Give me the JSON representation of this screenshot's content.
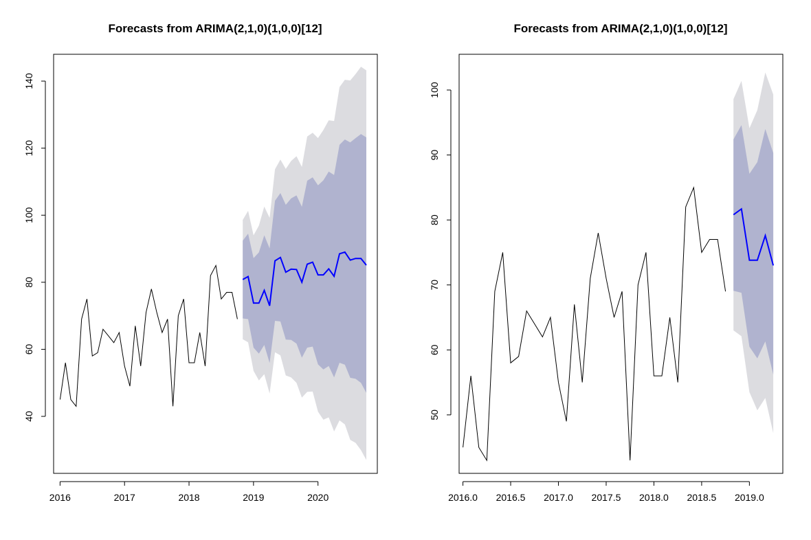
{
  "chart_data": [
    {
      "type": "line",
      "title": "Forecasts from ARIMA(2,1,0)(1,0,0)[12]",
      "xlabel": "",
      "ylabel": "",
      "xlim": [
        2015.9,
        2020.92
      ],
      "ylim": [
        23.0,
        148.0
      ],
      "x_ticks": [
        {
          "value": 2016,
          "label": "2016"
        },
        {
          "value": 2017,
          "label": "2017"
        },
        {
          "value": 2018,
          "label": "2018"
        },
        {
          "value": 2019,
          "label": "2019"
        },
        {
          "value": 2020,
          "label": "2020"
        }
      ],
      "y_ticks": [
        {
          "value": 40,
          "label": "40"
        },
        {
          "value": 60,
          "label": "60"
        },
        {
          "value": 80,
          "label": "80"
        },
        {
          "value": 100,
          "label": "100"
        },
        {
          "value": 120,
          "label": "120"
        },
        {
          "value": 140,
          "label": "140"
        }
      ],
      "grid": false,
      "colors": {
        "observed": "#000000",
        "forecast": "#0000ff",
        "band_80": "#b0b3cf",
        "band_95": "#dcdce0"
      },
      "observed": {
        "x": [
          2016.0,
          2016.0833,
          2016.1667,
          2016.25,
          2016.3333,
          2016.4167,
          2016.5,
          2016.5833,
          2016.6667,
          2016.75,
          2016.8333,
          2016.9167,
          2017.0,
          2017.0833,
          2017.1667,
          2017.25,
          2017.3333,
          2017.4167,
          2017.5,
          2017.5833,
          2017.6667,
          2017.75,
          2017.8333,
          2017.9167,
          2018.0,
          2018.0833,
          2018.1667,
          2018.25,
          2018.3333,
          2018.4167,
          2018.5,
          2018.5833,
          2018.6667,
          2018.75
        ],
        "y": [
          45,
          56,
          45,
          43,
          69,
          75,
          58,
          59,
          66,
          64,
          62,
          65,
          55,
          49,
          67,
          55,
          71,
          78,
          71,
          65,
          69,
          43,
          70,
          75,
          56,
          56,
          65,
          55,
          82,
          85,
          75,
          77,
          77,
          69
        ]
      },
      "forecast": {
        "x": [
          2018.8333,
          2018.9167,
          2019.0,
          2019.0833,
          2019.1667,
          2019.25,
          2019.3333,
          2019.4167,
          2019.5,
          2019.5833,
          2019.6667,
          2019.75,
          2019.8333,
          2019.9167,
          2020.0,
          2020.0833,
          2020.1667,
          2020.25,
          2020.3333,
          2020.4167,
          2020.5,
          2020.5833,
          2020.6667,
          2020.75
        ],
        "mean": [
          80.8,
          81.7,
          73.8,
          73.8,
          77.6,
          73.0,
          86.4,
          87.4,
          83.0,
          83.9,
          83.8,
          80.0,
          85.4,
          86.0,
          82.2,
          82.2,
          84.0,
          81.8,
          88.5,
          89.0,
          86.6,
          87.1,
          87.1,
          85.1
        ],
        "lo80": [
          69.2,
          69.0,
          60.5,
          58.7,
          61.3,
          55.9,
          68.5,
          68.3,
          62.9,
          62.8,
          61.7,
          57.5,
          60.5,
          60.8,
          55.5,
          54.0,
          55.0,
          51.6,
          56.0,
          55.4,
          51.5,
          51.2,
          50.0,
          47.0
        ],
        "hi80": [
          92.4,
          94.5,
          87.2,
          88.9,
          94.0,
          90.1,
          104.3,
          106.6,
          103.1,
          105.0,
          105.9,
          102.5,
          110.3,
          111.3,
          108.9,
          110.4,
          113.0,
          112.0,
          121.0,
          122.6,
          121.7,
          123.0,
          124.2,
          123.2
        ],
        "lo95": [
          63.0,
          62.1,
          53.6,
          50.7,
          52.6,
          46.8,
          59.1,
          58.2,
          52.2,
          51.6,
          50.0,
          45.6,
          47.3,
          47.4,
          41.4,
          39.0,
          39.7,
          35.5,
          38.8,
          37.6,
          33.0,
          32.1,
          29.9,
          27.0
        ],
        "hi95": [
          98.6,
          101.3,
          94.0,
          96.9,
          102.6,
          99.2,
          113.7,
          116.6,
          113.8,
          116.2,
          117.6,
          114.4,
          123.5,
          124.6,
          123.0,
          125.4,
          128.3,
          128.1,
          138.2,
          140.4,
          140.2,
          142.1,
          144.3,
          143.2
        ]
      }
    },
    {
      "type": "line",
      "title": "Forecasts from ARIMA(2,1,0)(1,0,0)[12]",
      "xlabel": "",
      "ylabel": "",
      "xlim": [
        2015.96,
        2019.35
      ],
      "ylim": [
        41.0,
        105.5
      ],
      "x_ticks": [
        {
          "value": 2016.0,
          "label": "2016.0"
        },
        {
          "value": 2016.5,
          "label": "2016.5"
        },
        {
          "value": 2017.0,
          "label": "2017.0"
        },
        {
          "value": 2017.5,
          "label": "2017.5"
        },
        {
          "value": 2018.0,
          "label": "2018.0"
        },
        {
          "value": 2018.5,
          "label": "2018.5"
        },
        {
          "value": 2019.0,
          "label": "2019.0"
        }
      ],
      "y_ticks": [
        {
          "value": 50,
          "label": "50"
        },
        {
          "value": 60,
          "label": "60"
        },
        {
          "value": 70,
          "label": "70"
        },
        {
          "value": 80,
          "label": "80"
        },
        {
          "value": 90,
          "label": "90"
        },
        {
          "value": 100,
          "label": "100"
        }
      ],
      "grid": false,
      "colors": {
        "observed": "#000000",
        "forecast": "#0000ff",
        "band_80": "#b0b3cf",
        "band_95": "#dcdce0"
      },
      "observed": {
        "x": [
          2016.0,
          2016.0833,
          2016.1667,
          2016.25,
          2016.3333,
          2016.4167,
          2016.5,
          2016.5833,
          2016.6667,
          2016.75,
          2016.8333,
          2016.9167,
          2017.0,
          2017.0833,
          2017.1667,
          2017.25,
          2017.3333,
          2017.4167,
          2017.5,
          2017.5833,
          2017.6667,
          2017.75,
          2017.8333,
          2017.9167,
          2018.0,
          2018.0833,
          2018.1667,
          2018.25,
          2018.3333,
          2018.4167,
          2018.5,
          2018.5833,
          2018.6667,
          2018.75
        ],
        "y": [
          45,
          56,
          45,
          43,
          69,
          75,
          58,
          59,
          66,
          64,
          62,
          65,
          55,
          49,
          67,
          55,
          71,
          78,
          71,
          65,
          69,
          43,
          70,
          75,
          56,
          56,
          65,
          55,
          82,
          85,
          75,
          77,
          77,
          69
        ]
      },
      "forecast": {
        "x": [
          2018.8333,
          2018.9167,
          2019.0,
          2019.0833,
          2019.1667,
          2019.25
        ],
        "mean": [
          80.8,
          81.7,
          73.8,
          73.8,
          77.6,
          73.0
        ],
        "lo80": [
          69.1,
          68.8,
          60.5,
          58.7,
          61.3,
          56.2
        ],
        "hi80": [
          92.4,
          94.6,
          87.1,
          88.9,
          94.0,
          90.3
        ],
        "lo95": [
          63.0,
          62.1,
          53.5,
          50.7,
          52.6,
          47.2
        ],
        "hi95": [
          98.6,
          101.4,
          94.1,
          96.9,
          102.7,
          99.3
        ]
      }
    }
  ]
}
